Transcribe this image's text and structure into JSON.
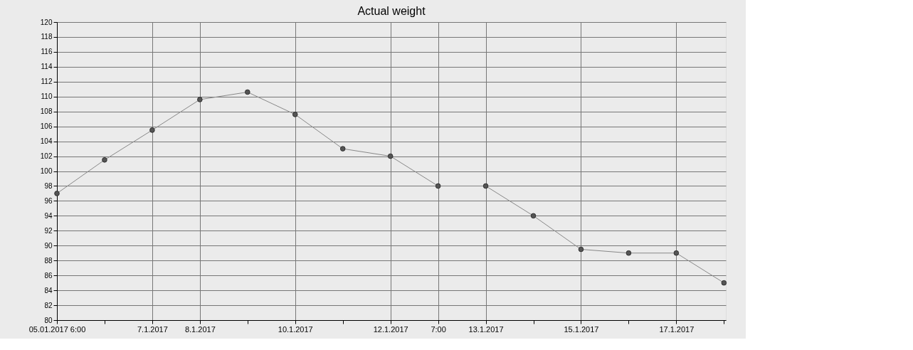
{
  "chart_data": {
    "type": "line",
    "title": "Actual weight",
    "categories": [
      "05.01.2017 6:00",
      null,
      "7.1.2017",
      "8.1.2017",
      null,
      "10.1.2017",
      null,
      "12.1.2017",
      "7:00",
      "13.1.2017",
      null,
      "15.1.2017",
      null,
      "17.1.2017",
      null
    ],
    "series": [
      {
        "color": "#555555",
        "values": [
          97,
          101.5,
          105.5,
          109.6,
          110.6,
          107.6,
          103,
          102,
          98,
          98,
          94,
          89.5,
          89,
          89,
          85
        ]
      }
    ],
    "ylim": [
      80,
      120
    ],
    "yticks": [
      80,
      82,
      84,
      86,
      88,
      90,
      92,
      94,
      96,
      98,
      100,
      102,
      104,
      106,
      108,
      110,
      112,
      114,
      116,
      118,
      120
    ],
    "grid": true,
    "marker": "circle",
    "line_style": "solid"
  }
}
